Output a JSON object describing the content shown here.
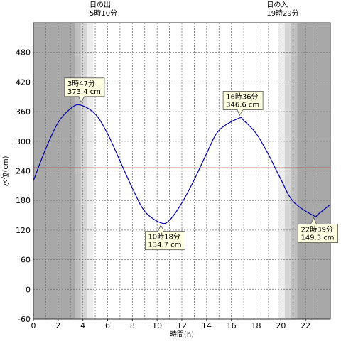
{
  "chart_data": {
    "type": "line",
    "xlabel": "時間(h)",
    "ylabel": "水位(cm)",
    "xlim": [
      0,
      24
    ],
    "ylim": [
      -60,
      540
    ],
    "x_ticks": [
      0,
      2,
      4,
      6,
      8,
      10,
      12,
      14,
      16,
      18,
      20,
      22
    ],
    "x_tick_labels": [
      "0",
      "2",
      "4",
      "6",
      "8",
      "10",
      "12",
      "14",
      "16",
      "18",
      "20",
      "22"
    ],
    "y_ticks": [
      -60,
      0,
      60,
      120,
      180,
      240,
      300,
      360,
      420,
      480
    ],
    "y_tick_labels": [
      "-60",
      "0",
      "60",
      "120",
      "180",
      "240",
      "300",
      "360",
      "420",
      "480"
    ],
    "grid": true,
    "reference_line": {
      "y": 246,
      "color": "#dd0000"
    },
    "series_color": "#0000aa",
    "extrema": [
      {
        "x": 3.783,
        "y": 373.4,
        "time": "3時47分",
        "level": "373.4 cm",
        "side": "above"
      },
      {
        "x": 10.3,
        "y": 134.7,
        "time": "10時18分",
        "level": "134.7 cm",
        "side": "below"
      },
      {
        "x": 16.6,
        "y": 346.6,
        "time": "16時36分",
        "level": "346.6 cm",
        "side": "above"
      },
      {
        "x": 22.65,
        "y": 149.3,
        "time": "22時39分",
        "level": "149.3 cm",
        "side": "below"
      }
    ],
    "series": [
      {
        "x": [
          0,
          1,
          2,
          3,
          3.783,
          5,
          6,
          7,
          8,
          9,
          10.3,
          11,
          12,
          13,
          14,
          15,
          16.6,
          17,
          18,
          19,
          20,
          21,
          22.65,
          23,
          24
        ],
        "values": [
          220,
          285,
          338,
          366,
          373.4,
          355,
          315,
          260,
          205,
          158,
          134.7,
          140,
          175,
          222,
          275,
          322,
          346.6,
          342,
          316,
          273,
          223,
          178,
          149.3,
          152,
          172
        ]
      }
    ],
    "sunrise": {
      "x": 5.167,
      "label": "日の出",
      "time": "5時10分"
    },
    "sunset": {
      "x": 19.483,
      "label": "日の入",
      "time": "19時29分"
    },
    "shading_colors": [
      "#a8a8a8",
      "#c0c0c0",
      "#d6d6d6",
      "#ececec"
    ]
  }
}
